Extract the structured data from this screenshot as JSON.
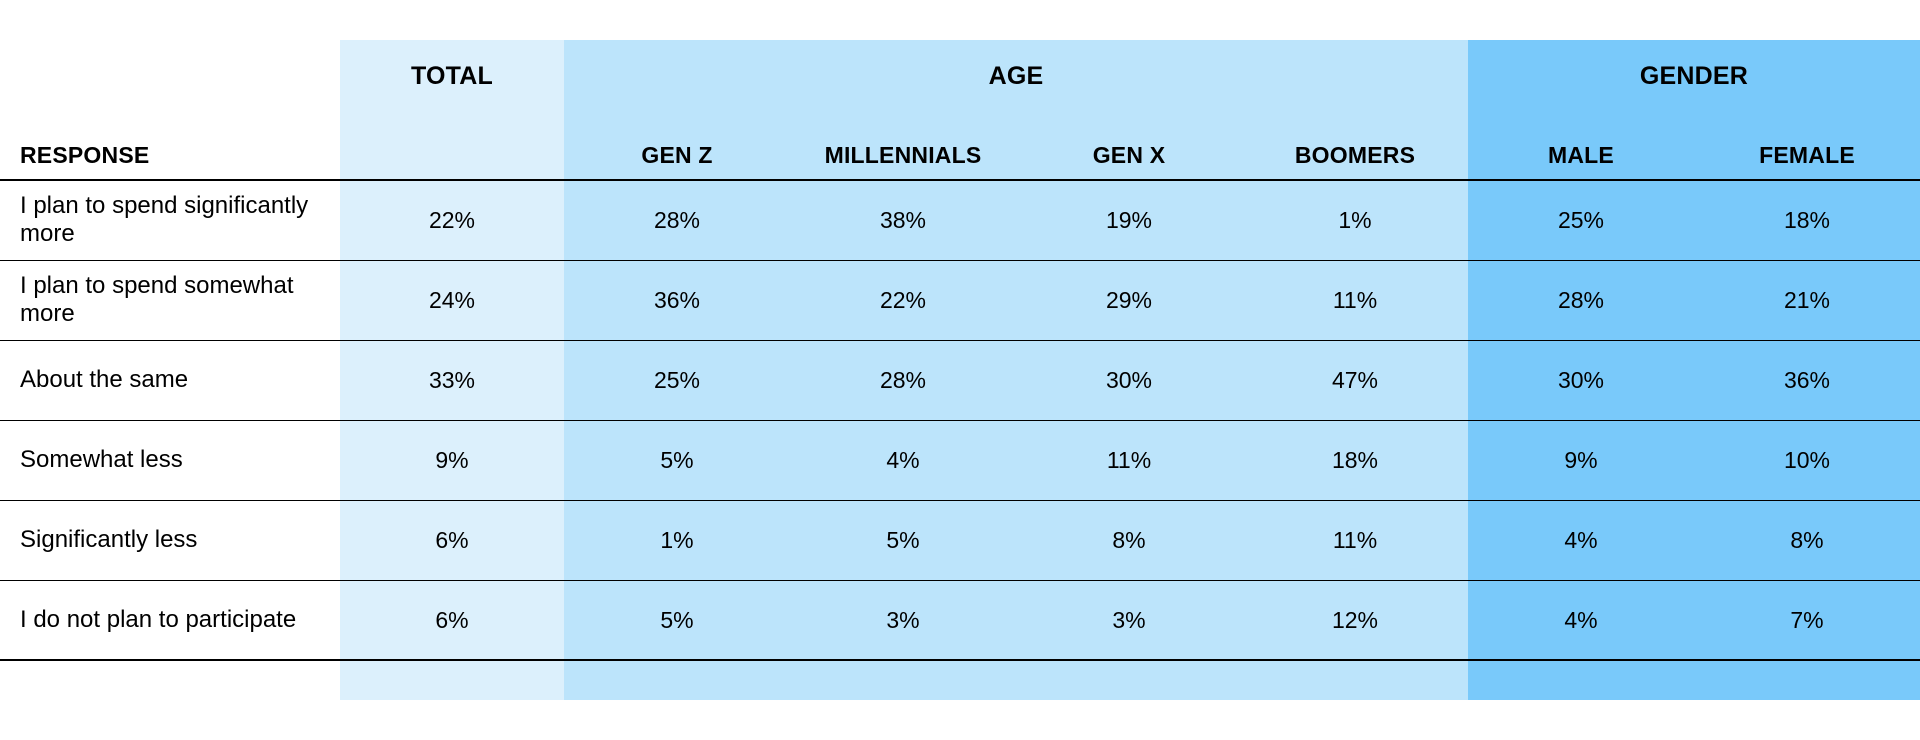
{
  "colors": {
    "total_band": "#dcf0fc",
    "age_band": "#bce4fb",
    "gender_band": "#79c9fa",
    "rule_line": "#000000",
    "text": "#000000"
  },
  "table": {
    "response_header": "RESPONSE",
    "groups": [
      "TOTAL",
      "AGE",
      "GENDER"
    ],
    "columns": [
      "",
      "GEN Z",
      "MILLENNIALS",
      "GEN X",
      "BOOMERS",
      "MALE",
      "FEMALE"
    ]
  },
  "chart_data": {
    "type": "table",
    "column_groups": [
      {
        "name": "TOTAL",
        "columns": [
          ""
        ]
      },
      {
        "name": "AGE",
        "columns": [
          "GEN Z",
          "MILLENNIALS",
          "GEN X",
          "BOOMERS"
        ]
      },
      {
        "name": "GENDER",
        "columns": [
          "MALE",
          "FEMALE"
        ]
      }
    ],
    "row_header": "RESPONSE",
    "rows": [
      {
        "label": "I plan to spend significantly more",
        "values": [
          "22%",
          "28%",
          "38%",
          "19%",
          "1%",
          "25%",
          "18%"
        ]
      },
      {
        "label": "I plan to spend somewhat more",
        "values": [
          "24%",
          "36%",
          "22%",
          "29%",
          "11%",
          "28%",
          "21%"
        ]
      },
      {
        "label": "About the same",
        "values": [
          "33%",
          "25%",
          "28%",
          "30%",
          "47%",
          "30%",
          "36%"
        ]
      },
      {
        "label": "Somewhat less",
        "values": [
          "9%",
          "5%",
          "4%",
          "11%",
          "18%",
          "9%",
          "10%"
        ]
      },
      {
        "label": "Significantly less",
        "values": [
          "6%",
          "1%",
          "5%",
          "8%",
          "11%",
          "4%",
          "8%"
        ]
      },
      {
        "label": "I do not plan to participate",
        "values": [
          "6%",
          "5%",
          "3%",
          "3%",
          "12%",
          "4%",
          "7%"
        ]
      }
    ]
  }
}
